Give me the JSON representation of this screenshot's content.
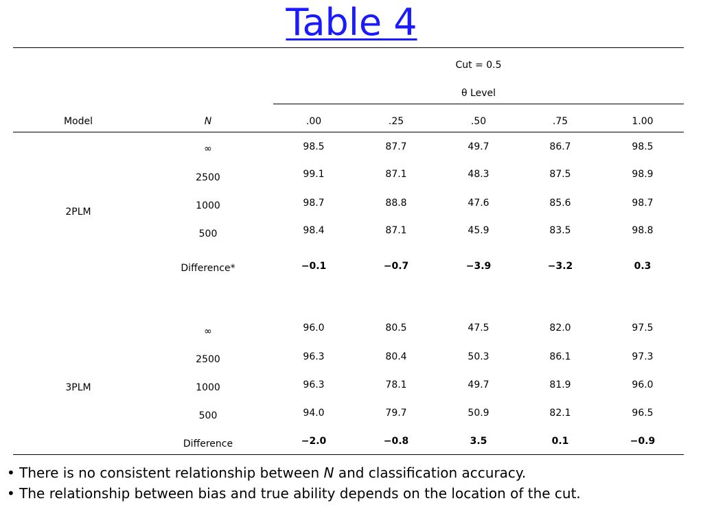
{
  "slide": {
    "title": "Table 4"
  },
  "table": {
    "cut_label": "Cut = 0.5",
    "theta_label": "θ Level",
    "header_model": "Model",
    "header_n": "N",
    "theta_levels": [
      ".00",
      ".25",
      ".50",
      ".75",
      "1.00"
    ],
    "groups": [
      {
        "model": "2PLM",
        "rows": [
          {
            "n": "∞",
            "values": [
              "98.5",
              "87.7",
              "49.7",
              "86.7",
              "98.5"
            ]
          },
          {
            "n": "2500",
            "values": [
              "99.1",
              "87.1",
              "48.3",
              "87.5",
              "98.9"
            ]
          },
          {
            "n": "1000",
            "values": [
              "98.7",
              "88.8",
              "47.6",
              "85.6",
              "98.7"
            ]
          },
          {
            "n": "500",
            "values": [
              "98.4",
              "87.1",
              "45.9",
              "83.5",
              "98.8"
            ]
          },
          {
            "n": "Difference*",
            "values": [
              "−0.1",
              "−0.7",
              "−3.9",
              "−3.2",
              "0.3"
            ],
            "bold": true
          }
        ]
      },
      {
        "model": "3PLM",
        "rows": [
          {
            "n": "∞",
            "values": [
              "96.0",
              "80.5",
              "47.5",
              "82.0",
              "97.5"
            ]
          },
          {
            "n": "2500",
            "values": [
              "96.3",
              "80.4",
              "50.3",
              "86.1",
              "97.3"
            ]
          },
          {
            "n": "1000",
            "values": [
              "96.3",
              "78.1",
              "49.7",
              "81.9",
              "96.0"
            ]
          },
          {
            "n": "500",
            "values": [
              "94.0",
              "79.7",
              "50.9",
              "82.1",
              "96.5"
            ]
          },
          {
            "n": "Difference",
            "values": [
              "−2.0",
              "−0.8",
              "3.5",
              "0.1",
              "−0.9"
            ],
            "bold": true
          }
        ]
      }
    ]
  },
  "bullets": {
    "b1_pre": "There is no consistent relationship between ",
    "b1_em": "N",
    "b1_post": " and classification accuracy.",
    "b2": "The relationship between bias and true ability depends on the location of the cut."
  },
  "colors": {
    "title": "#1a1aff",
    "text": "#000000",
    "background": "#ffffff"
  }
}
